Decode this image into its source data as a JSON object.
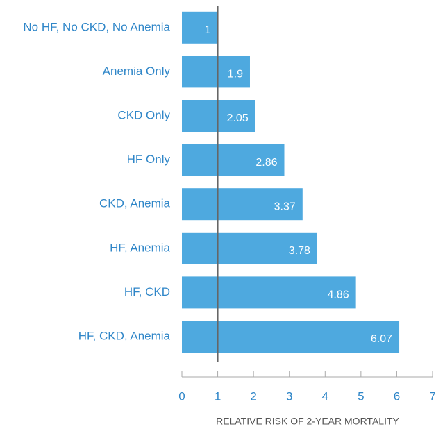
{
  "chart_data": {
    "type": "bar",
    "orientation": "horizontal",
    "x_label": "RELATIVE RISK OF 2-YEAR MORTALITY",
    "categories": [
      "No HF, No CKD, No Anemia",
      "Anemia Only",
      "CKD Only",
      "HF Only",
      "CKD, Anemia",
      "HF, Anemia",
      "HF, CKD",
      "HF, CKD, Anemia"
    ],
    "values": [
      1,
      1.9,
      2.05,
      2.86,
      3.37,
      3.78,
      4.86,
      6.07
    ],
    "color": "#4ea9df",
    "label_color": "#2f86c8",
    "xlim": [
      0,
      7
    ],
    "xticks": [
      0,
      1,
      2,
      3,
      4,
      5,
      6,
      7
    ],
    "reference_line": 1,
    "grid": false
  }
}
